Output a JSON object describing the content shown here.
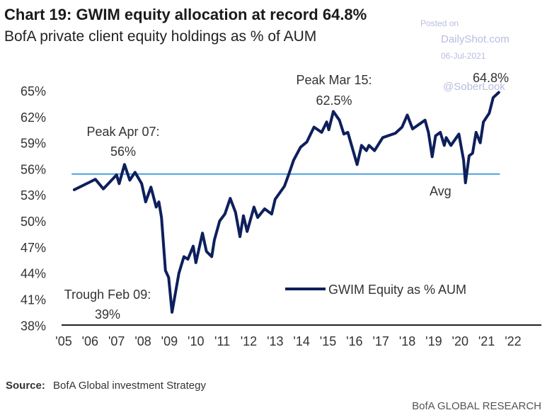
{
  "header": {
    "title": "Chart 19: GWIM equity allocation at record 64.8%",
    "subtitle": "BofA private client equity holdings as % of AUM"
  },
  "watermark": {
    "line1": "Posted on",
    "line2": "DailyShot.com",
    "line3": "06-Jul-2021",
    "line4": "@SoberLook"
  },
  "chart_data": {
    "type": "line",
    "title": "Chart 19: GWIM equity allocation at record 64.8%",
    "subtitle": "BofA private client equity holdings as % of AUM",
    "xlabel": "",
    "ylabel": "",
    "xlim": [
      2005,
      2022
    ],
    "ylim": [
      38,
      65
    ],
    "grid": false,
    "legend_position": "bottom-right",
    "x_ticks": [
      "'05",
      "'06",
      "'07",
      "'08",
      "'09",
      "'10",
      "'11",
      "'12",
      "'13",
      "'14",
      "'15",
      "'16",
      "'17",
      "'18",
      "'19",
      "'20",
      "'21",
      "'22"
    ],
    "y_ticks": [
      "65%",
      "62%",
      "59%",
      "56%",
      "53%",
      "50%",
      "47%",
      "44%",
      "41%",
      "38%"
    ],
    "y_tick_values": [
      65,
      62,
      59,
      56,
      53,
      50,
      47,
      44,
      41,
      38
    ],
    "series": [
      {
        "name": "GWIM Equity as % AUM",
        "color": "#0d1f5c",
        "x": [
          2005.4,
          2006.2,
          2006.5,
          2007.0,
          2007.1,
          2007.3,
          2007.5,
          2007.7,
          2007.95,
          2008.1,
          2008.3,
          2008.5,
          2008.6,
          2008.7,
          2008.85,
          2008.97,
          2009.1,
          2009.36,
          2009.55,
          2009.7,
          2009.9,
          2010.0,
          2010.25,
          2010.4,
          2010.6,
          2010.7,
          2010.9,
          2011.1,
          2011.3,
          2011.5,
          2011.67,
          2011.8,
          2011.94,
          2012.2,
          2012.34,
          2012.6,
          2012.87,
          2013.0,
          2013.35,
          2013.53,
          2013.7,
          2013.96,
          2014.2,
          2014.47,
          2014.76,
          2014.95,
          2015.03,
          2015.2,
          2015.43,
          2015.6,
          2015.75,
          2016.1,
          2016.27,
          2016.45,
          2016.55,
          2016.76,
          2017.07,
          2017.55,
          2017.8,
          2018.0,
          2018.2,
          2018.67,
          2018.8,
          2018.94,
          2019.07,
          2019.25,
          2019.4,
          2019.47,
          2019.65,
          2019.95,
          2020.13,
          2020.2,
          2020.34,
          2020.47,
          2020.6,
          2020.76,
          2020.88,
          2021.1,
          2021.25,
          2021.46
        ],
        "y": [
          53.6,
          54.8,
          53.7,
          55.3,
          54.3,
          56.5,
          54.7,
          55.6,
          54.3,
          52.2,
          53.9,
          51.6,
          52.2,
          50.4,
          44.3,
          43.5,
          39.5,
          44.0,
          45.9,
          45.6,
          47.1,
          45.2,
          48.6,
          46.5,
          45.9,
          47.8,
          50.0,
          50.8,
          52.6,
          51.0,
          48.2,
          50.6,
          48.8,
          51.6,
          50.4,
          51.4,
          50.8,
          52.5,
          54.0,
          55.5,
          57.0,
          58.5,
          59.1,
          60.8,
          60.2,
          61.4,
          60.5,
          62.6,
          61.6,
          60.0,
          60.2,
          56.5,
          58.7,
          58.1,
          58.7,
          58.1,
          59.6,
          60.1,
          60.8,
          62.2,
          60.6,
          61.6,
          60.2,
          57.4,
          59.8,
          60.2,
          58.7,
          59.6,
          58.7,
          60.0,
          57.0,
          54.4,
          57.5,
          57.8,
          60.2,
          59.0,
          61.4,
          62.4,
          64.2,
          64.8
        ]
      },
      {
        "name": "Avg",
        "color": "#4a9fe0",
        "x": [
          2005.3,
          2021.5
        ],
        "y": [
          55.4,
          55.4
        ]
      }
    ],
    "annotations": [
      {
        "line1": "Peak Apr 07:",
        "line2": "56%"
      },
      {
        "line1": "Trough Feb 09:",
        "line2": "39%"
      },
      {
        "line1": "Peak Mar 15:",
        "line2": "62.5%"
      },
      {
        "line1": "",
        "line2": "64.8%"
      },
      {
        "line1": "Avg",
        "line2": ""
      }
    ],
    "legend": [
      "GWIM Equity as % AUM"
    ]
  },
  "footer": {
    "source_label": "Source:",
    "source_text": "BofA Global investment Strategy",
    "brand": "BofA GLOBAL RESEARCH"
  }
}
